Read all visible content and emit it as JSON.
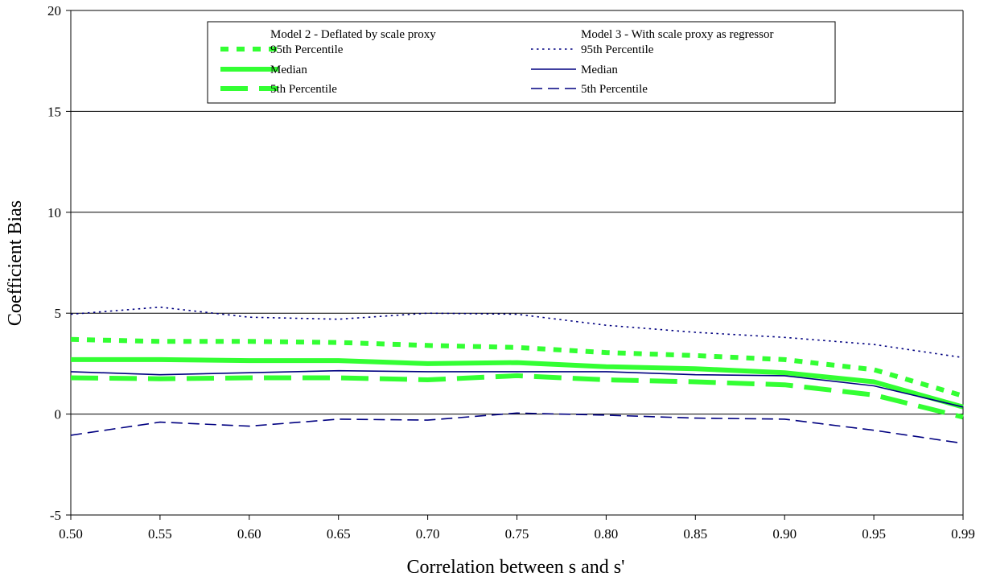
{
  "chart_data": {
    "type": "line",
    "title": "",
    "xlabel": "Correlation between s and s'",
    "ylabel": "Coefficient Bias",
    "categories": [
      "0.50",
      "0.55",
      "0.60",
      "0.65",
      "0.70",
      "0.75",
      "0.80",
      "0.85",
      "0.90",
      "0.95",
      "0.99"
    ],
    "ylim": [
      -5,
      20
    ],
    "yticks": [
      -5,
      0,
      5,
      10,
      15,
      20
    ],
    "grid": "horizontal",
    "legend": {
      "placement": "top-center",
      "groups": [
        {
          "title": "Model 2 - Deflated by scale proxy"
        },
        {
          "title": "Model 3 - With scale proxy as regressor"
        }
      ]
    },
    "series": [
      {
        "name": "95th Percentile",
        "group": 0,
        "color": "#33ff33",
        "style": "dotted-thick",
        "values": [
          3.7,
          3.6,
          3.6,
          3.55,
          3.4,
          3.3,
          3.05,
          2.9,
          2.7,
          2.2,
          0.9
        ]
      },
      {
        "name": "Median",
        "group": 0,
        "color": "#33ff33",
        "style": "solid-thick",
        "values": [
          2.7,
          2.7,
          2.65,
          2.65,
          2.5,
          2.55,
          2.35,
          2.25,
          2.05,
          1.6,
          0.35
        ]
      },
      {
        "name": "5th Percentile",
        "group": 0,
        "color": "#33ff33",
        "style": "dashed-thick",
        "values": [
          1.8,
          1.75,
          1.8,
          1.8,
          1.7,
          1.9,
          1.7,
          1.6,
          1.45,
          0.95,
          -0.15
        ]
      },
      {
        "name": "95th Percentile",
        "group": 1,
        "color": "#000080",
        "style": "dotted-thin",
        "values": [
          4.95,
          5.3,
          4.8,
          4.7,
          5.0,
          4.95,
          4.4,
          4.05,
          3.8,
          3.45,
          2.8
        ]
      },
      {
        "name": "Median",
        "group": 1,
        "color": "#000080",
        "style": "solid-thin",
        "values": [
          2.1,
          1.95,
          2.05,
          2.15,
          2.1,
          2.1,
          2.1,
          1.95,
          1.9,
          1.4,
          0.35
        ]
      },
      {
        "name": "5th Percentile",
        "group": 1,
        "color": "#000080",
        "style": "dashed-thin",
        "values": [
          -1.05,
          -0.4,
          -0.6,
          -0.25,
          -0.3,
          0.05,
          -0.05,
          -0.2,
          -0.25,
          -0.8,
          -1.45
        ]
      }
    ]
  }
}
